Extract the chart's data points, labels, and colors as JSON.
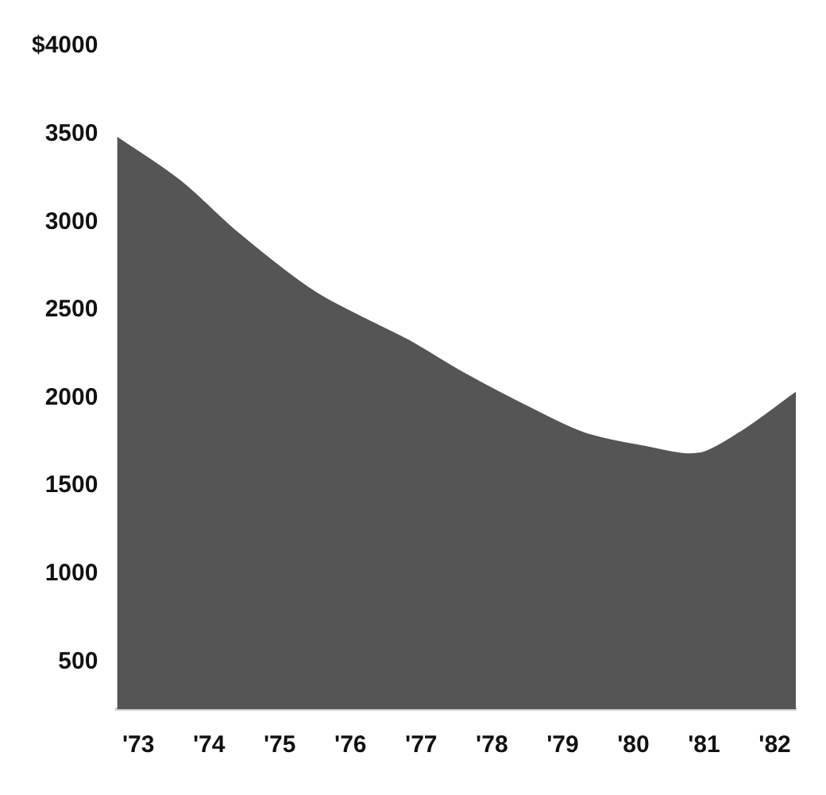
{
  "chart_data": {
    "type": "area",
    "x": [
      1972.7,
      1973.6,
      1974.4,
      1975.5,
      1976.2,
      1976.8,
      1977.6,
      1978.5,
      1979.3,
      1980.2,
      1980.8,
      1981.0,
      1981.5,
      1982.3
    ],
    "values": [
      3480,
      3230,
      2940,
      2600,
      2450,
      2330,
      2140,
      1950,
      1800,
      1720,
      1680,
      1690,
      1800,
      2030
    ],
    "color": "#555555",
    "xlim": [
      1972.7,
      1982.3
    ],
    "xticks": [
      {
        "value": 1973,
        "label": "'73"
      },
      {
        "value": 1974,
        "label": "'74"
      },
      {
        "value": 1975,
        "label": "'75"
      },
      {
        "value": 1976,
        "label": "'76"
      },
      {
        "value": 1977,
        "label": "'77"
      },
      {
        "value": 1978,
        "label": "'78"
      },
      {
        "value": 1979,
        "label": "'79"
      },
      {
        "value": 1980,
        "label": "'80"
      },
      {
        "value": 1981,
        "label": "'81"
      },
      {
        "value": 1982,
        "label": "'82"
      }
    ],
    "ylim": [
      230,
      4000
    ],
    "yticks": [
      500,
      1000,
      1500,
      2000,
      2500,
      3000,
      3500,
      {
        "value": 4000,
        "label": "$4000"
      }
    ]
  }
}
